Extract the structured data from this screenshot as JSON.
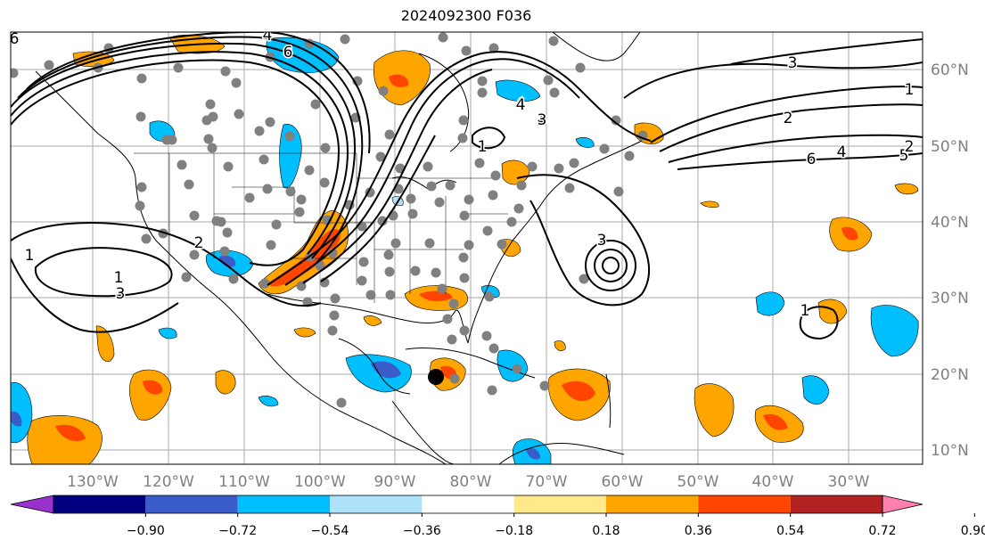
{
  "title": "2024092300 F036",
  "map": {
    "lon_ticks": [
      "130°W",
      "120°W",
      "110°W",
      "100°W",
      "90°W",
      "80°W",
      "70°W",
      "60°W",
      "50°W",
      "40°W",
      "30°W"
    ],
    "lat_ticks": [
      "60°N",
      "50°N",
      "40°N",
      "30°N",
      "20°N",
      "10°N"
    ],
    "contour_labels": [
      "6",
      "4",
      "4",
      "6",
      "1",
      "4",
      "3",
      "2",
      "6",
      "4",
      "5",
      "1",
      "1",
      "3",
      "3",
      "2",
      "1",
      "2",
      "4",
      "3",
      "1"
    ]
  },
  "colorbar": {
    "tick_labels": [
      "−0.90",
      "−0.72",
      "−0.54",
      "−0.36",
      "−0.18",
      "0.18",
      "0.36",
      "0.54",
      "0.72",
      "0.90"
    ],
    "colors": [
      "#9932cc",
      "#000080",
      "#3a5cc9",
      "#00bfff",
      "#aee2fa",
      "#ffffff",
      "#ffe98a",
      "#ffa500",
      "#ff4500",
      "#b22222",
      "#ff7fb0"
    ]
  }
}
